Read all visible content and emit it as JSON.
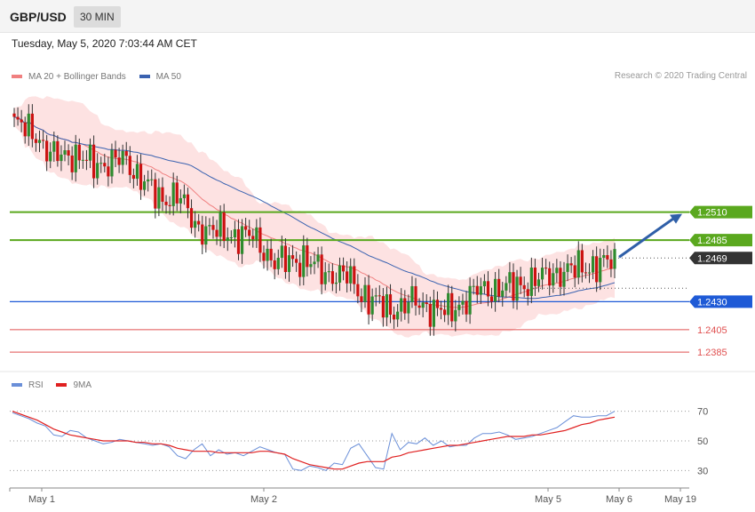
{
  "header": {
    "symbol": "GBP/USD",
    "timeframe": "30 MIN"
  },
  "timestamp": "Tuesday, May 5, 2020 7:03:44 AM CET",
  "legend": {
    "ma20_label": "MA 20 + Bollinger Bands",
    "ma50_label": "MA 50"
  },
  "credit": "Research © 2020 Trading Central",
  "rsi_legend": {
    "rsi_label": "RSI",
    "ma_label": "9MA"
  },
  "colors": {
    "up": "#2e8b2e",
    "down": "#cc1111",
    "ma20": "#f08080",
    "ma50": "#3a62b0",
    "band": "#fde2e2",
    "resistance": "#5aa81e",
    "support": "#1e5ad6",
    "support2": "#e05050",
    "last": "#333333",
    "arrow": "#2f5fa8",
    "rsi": "#6a8fd8",
    "rsi_ma": "#e02020"
  },
  "chart_data": [
    {
      "type": "candlestick",
      "title": "GBP/USD",
      "x_labels": [
        "May 1",
        "May 2",
        "May 5",
        "May 6",
        "May 19"
      ],
      "ylim": [
        1.237,
        1.262
      ],
      "last_price": 1.2469,
      "levels": [
        {
          "label": "1.2510",
          "value": 1.251,
          "kind": "resistance"
        },
        {
          "label": "1.2485",
          "value": 1.2485,
          "kind": "resistance"
        },
        {
          "label": "1.2469",
          "value": 1.2469,
          "kind": "last"
        },
        {
          "label": "1.2430",
          "value": 1.243,
          "kind": "support"
        },
        {
          "label": "1.2405",
          "value": 1.2405,
          "kind": "support2"
        },
        {
          "label": "1.2385",
          "value": 1.2385,
          "kind": "support2"
        }
      ],
      "target_arrow": {
        "from": 1.2469,
        "to": 1.251
      },
      "series": [
        {
          "name": "MA 20 + Bollinger Bands"
        },
        {
          "name": "MA 50"
        }
      ]
    },
    {
      "type": "line",
      "title": "RSI",
      "ylim": [
        20,
        80
      ],
      "yticks": [
        "70",
        "50",
        "30"
      ],
      "series": [
        {
          "name": "RSI",
          "values": [
            69,
            67,
            65,
            62,
            60,
            54,
            53,
            57,
            56,
            52,
            50,
            48,
            49,
            51,
            50,
            49,
            48,
            47,
            48,
            46,
            40,
            38,
            44,
            48,
            40,
            44,
            41,
            42,
            40,
            43,
            46,
            44,
            42,
            41,
            31,
            30,
            33,
            32,
            30,
            35,
            34,
            45,
            48,
            40,
            32,
            31,
            55,
            44,
            49,
            48,
            52,
            47,
            50,
            46,
            47,
            47,
            52,
            55,
            55,
            56,
            54,
            51,
            52,
            53,
            55,
            57,
            59,
            63,
            67,
            66,
            66,
            67,
            67,
            70
          ]
        },
        {
          "name": "9MA",
          "values": [
            70,
            68,
            66,
            64,
            61,
            58,
            56,
            54,
            53,
            52,
            51,
            50,
            50,
            50,
            50,
            49,
            49,
            48,
            48,
            47,
            45,
            44,
            43,
            43,
            43,
            42,
            42,
            42,
            42,
            42,
            43,
            43,
            42,
            41,
            38,
            36,
            34,
            33,
            32,
            31,
            31,
            33,
            35,
            36,
            36,
            36,
            39,
            40,
            42,
            43,
            44,
            45,
            46,
            47,
            47,
            48,
            49,
            50,
            51,
            52,
            53,
            53,
            53,
            54,
            54,
            55,
            56,
            57,
            59,
            61,
            62,
            64,
            65,
            66
          ]
        }
      ]
    }
  ]
}
